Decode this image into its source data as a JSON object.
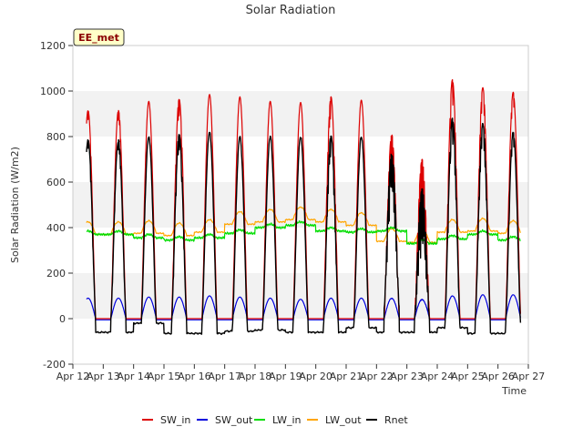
{
  "chart_data": {
    "type": "line",
    "title": "Solar Radiation",
    "xlabel": "Time",
    "ylabel": "Solar Radiation (W/m2)",
    "badge": "EE_met",
    "ylim": [
      -200,
      1200
    ],
    "xlim": [
      12,
      27
    ],
    "yticks": [
      -200,
      0,
      200,
      400,
      600,
      800,
      1000,
      1200
    ],
    "xticks": [
      12,
      13,
      14,
      15,
      16,
      17,
      18,
      19,
      20,
      21,
      22,
      23,
      24,
      25,
      26,
      27
    ],
    "xtick_labels": [
      "Apr 12",
      "Apr 13",
      "Apr 14",
      "Apr 15",
      "Apr 16",
      "Apr 17",
      "Apr 18",
      "Apr 19",
      "Apr 20",
      "Apr 21",
      "Apr 22",
      "Apr 23",
      "Apr 24",
      "Apr 25",
      "Apr 26",
      "Apr 27"
    ],
    "grid": "horizontal bands",
    "legend_position": "bottom",
    "data_range": [
      12.45,
      26.75
    ],
    "series": [
      {
        "name": "SW_in",
        "color": "#dd0000"
      },
      {
        "name": "SW_out",
        "color": "#0000dd"
      },
      {
        "name": "LW_in",
        "color": "#00dd00"
      },
      {
        "name": "LW_out",
        "color": "#ffa500"
      },
      {
        "name": "Rnet",
        "color": "#000000"
      }
    ],
    "daily": [
      {
        "day": "Apr 13",
        "sw_in_peak": 915,
        "sw_out_peak": 90,
        "lw_in_day": 370,
        "lw_out_peak": 425,
        "rnet_night": -60
      },
      {
        "day": "Apr 14",
        "sw_in_peak": 955,
        "sw_out_peak": 95,
        "lw_in_day": 355,
        "lw_out_peak": 430,
        "rnet_night": -20
      },
      {
        "day": "Apr 15",
        "sw_in_peak": 965,
        "sw_out_peak": 95,
        "lw_in_day": 345,
        "lw_out_peak": 420,
        "rnet_night": -65
      },
      {
        "day": "Apr 16",
        "sw_in_peak": 985,
        "sw_out_peak": 100,
        "lw_in_day": 355,
        "lw_out_peak": 435,
        "rnet_night": -65
      },
      {
        "day": "Apr 17",
        "sw_in_peak": 975,
        "sw_out_peak": 95,
        "lw_in_day": 375,
        "lw_out_peak": 470,
        "rnet_night": -55
      },
      {
        "day": "Apr 18",
        "sw_in_peak": 955,
        "sw_out_peak": 90,
        "lw_in_day": 400,
        "lw_out_peak": 480,
        "rnet_night": -50
      },
      {
        "day": "Apr 19",
        "sw_in_peak": 950,
        "sw_out_peak": 85,
        "lw_in_day": 410,
        "lw_out_peak": 490,
        "rnet_night": -60
      },
      {
        "day": "Apr 20",
        "sw_in_peak": 975,
        "sw_out_peak": 90,
        "lw_in_day": 385,
        "lw_out_peak": 480,
        "rnet_night": -60
      },
      {
        "day": "Apr 21",
        "sw_in_peak": 960,
        "sw_out_peak": 90,
        "lw_in_day": 380,
        "lw_out_peak": 465,
        "rnet_night": -40
      },
      {
        "day": "Apr 22",
        "sw_in_peak": 810,
        "sw_out_peak": 90,
        "lw_in_day": 385,
        "lw_out_peak": 395,
        "rnet_night": -60
      },
      {
        "day": "Apr 23",
        "sw_in_peak": 700,
        "sw_out_peak": 85,
        "lw_in_day": 330,
        "lw_out_peak": 390,
        "rnet_night": -60
      },
      {
        "day": "Apr 24",
        "sw_in_peak": 1050,
        "sw_out_peak": 100,
        "lw_in_day": 350,
        "lw_out_peak": 435,
        "rnet_night": -40
      },
      {
        "day": "Apr 25",
        "sw_in_peak": 1015,
        "sw_out_peak": 105,
        "lw_in_day": 370,
        "lw_out_peak": 440,
        "rnet_night": -65
      },
      {
        "day": "Apr 26",
        "sw_in_peak": 995,
        "sw_out_peak": 105,
        "lw_in_day": 345,
        "lw_out_peak": 430,
        "rnet_night": -65
      }
    ]
  }
}
